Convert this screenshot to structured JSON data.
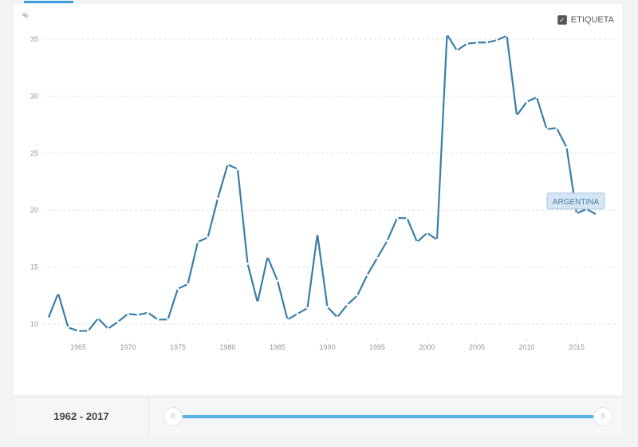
{
  "legend": {
    "label": "ETIQUETA",
    "checked": true
  },
  "slider": {
    "range_label": "1962 - 2017",
    "start": 1962,
    "end": 2017
  },
  "colors": {
    "line": "#3a7ea8",
    "accent": "#5ab4e5"
  },
  "chart_data": {
    "type": "line",
    "ylabel": "%",
    "ylim": [
      8.5,
      36
    ],
    "xlim": [
      1962,
      2017
    ],
    "yticks": [
      10,
      15,
      20,
      25,
      30,
      35
    ],
    "xticks": [
      1965,
      1970,
      1975,
      1980,
      1985,
      1990,
      1995,
      2000,
      2005,
      2010,
      2015
    ],
    "grid": true,
    "series": [
      {
        "name": "ARGENTINA",
        "x": [
          1962,
          1963,
          1964,
          1965,
          1966,
          1967,
          1968,
          1969,
          1970,
          1971,
          1972,
          1973,
          1974,
          1975,
          1976,
          1977,
          1978,
          1979,
          1980,
          1981,
          1982,
          1983,
          1984,
          1985,
          1986,
          1987,
          1988,
          1989,
          1990,
          1991,
          1992,
          1993,
          1994,
          1995,
          1996,
          1997,
          1998,
          1999,
          2000,
          2001,
          2002,
          2003,
          2004,
          2005,
          2006,
          2007,
          2008,
          2009,
          2010,
          2011,
          2012,
          2013,
          2014,
          2015,
          2016,
          2017
        ],
        "values": [
          10.5,
          12.7,
          9.7,
          9.4,
          9.4,
          10.5,
          9.6,
          10.2,
          10.9,
          10.8,
          11.0,
          10.4,
          10.4,
          13.1,
          13.5,
          17.2,
          17.6,
          21.0,
          24.0,
          23.6,
          15.3,
          11.9,
          15.9,
          13.8,
          10.4,
          10.9,
          11.4,
          17.9,
          11.5,
          10.6,
          11.7,
          12.5,
          14.3,
          15.8,
          17.3,
          19.3,
          19.3,
          17.2,
          18.0,
          17.4,
          35.4,
          34.0,
          34.6,
          34.7,
          34.7,
          34.9,
          35.3,
          28.3,
          29.5,
          29.9,
          27.1,
          27.2,
          25.5,
          19.7,
          20.1,
          19.6
        ]
      }
    ]
  }
}
